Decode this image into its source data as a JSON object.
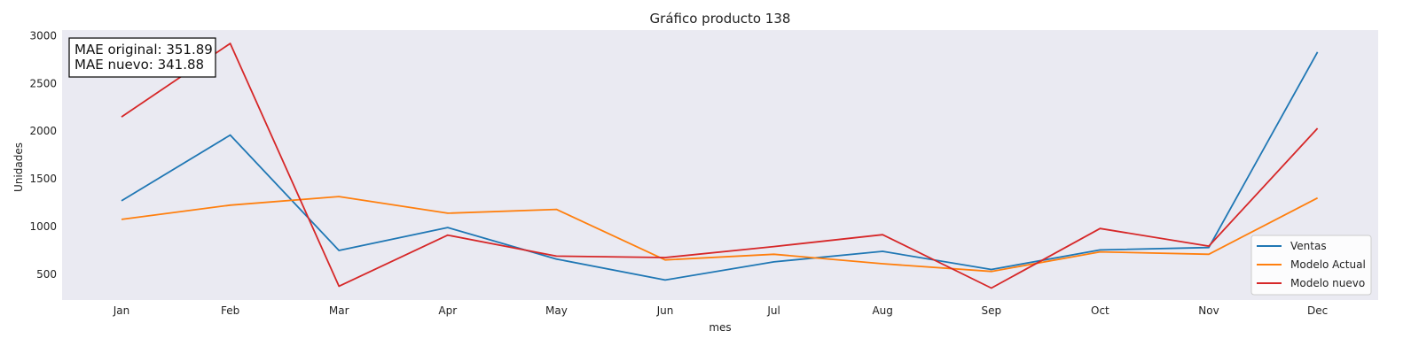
{
  "chart_data": {
    "type": "line",
    "title": "Gráfico producto 138",
    "xlabel": "mes",
    "ylabel": "Unidades",
    "categories": [
      "Jan",
      "Feb",
      "Mar",
      "Apr",
      "May",
      "Jun",
      "Jul",
      "Aug",
      "Sep",
      "Oct",
      "Nov",
      "Dec"
    ],
    "yticks": [
      500,
      1000,
      1500,
      2000,
      2500,
      3000
    ],
    "ylim": [
      230,
      3060
    ],
    "grid": false,
    "legend_position": "lower-right",
    "series": [
      {
        "name": "Ventas",
        "color": "#1f77b4",
        "values": [
          1270,
          1960,
          750,
          990,
          660,
          440,
          630,
          740,
          550,
          755,
          780,
          2830
        ]
      },
      {
        "name": "Modelo Actual",
        "color": "#ff7f0e",
        "values": [
          1075,
          1225,
          1315,
          1140,
          1180,
          650,
          710,
          610,
          530,
          735,
          710,
          1300
        ]
      },
      {
        "name": "Modelo nuevo",
        "color": "#d62728",
        "values": [
          2150,
          2920,
          375,
          910,
          690,
          675,
          790,
          915,
          355,
          980,
          795,
          2030
        ]
      }
    ],
    "annotation": {
      "lines": [
        "MAE original: 351.89",
        "MAE nuevo: 341.88"
      ]
    }
  }
}
